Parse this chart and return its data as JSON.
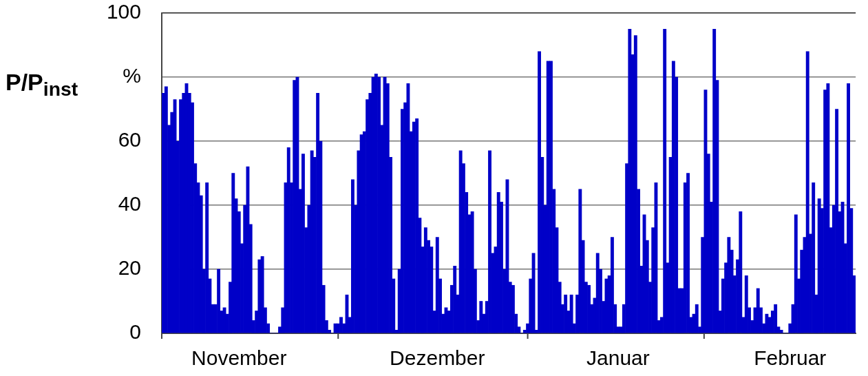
{
  "chart_data": {
    "type": "bar",
    "ylabel": "P/P$_{inst}$",
    "color": "#0000c8",
    "categories": [
      null,
      null,
      null,
      null,
      null,
      null,
      null,
      null,
      null,
      null,
      null,
      null,
      null,
      null,
      null,
      null,
      null,
      null,
      null,
      null,
      null,
      null,
      null,
      null,
      null,
      null,
      "November",
      null,
      null,
      null,
      null,
      null,
      null,
      null,
      null,
      null,
      null,
      null,
      null,
      null,
      null,
      null,
      null,
      null,
      null,
      null,
      null,
      null,
      null,
      null,
      null,
      null,
      null,
      null,
      null,
      null,
      null,
      null,
      null,
      null,
      null,
      null,
      null,
      null,
      null,
      null,
      null,
      null,
      null,
      null,
      null,
      null,
      null,
      null,
      null,
      null,
      null,
      null,
      null,
      null,
      null,
      null,
      null,
      null,
      null,
      null,
      null,
      null,
      null,
      null,
      null,
      null,
      null,
      null,
      "Dezember",
      null,
      null,
      null,
      null,
      null,
      null,
      null,
      null,
      null,
      null,
      null,
      null,
      null,
      null,
      null,
      null,
      null,
      null,
      null,
      null,
      null,
      null,
      null,
      null,
      null,
      null,
      null,
      null,
      null,
      null,
      null,
      null,
      null,
      null,
      null,
      null,
      null,
      null,
      null,
      null,
      null,
      null,
      null,
      null,
      null,
      null,
      null,
      null,
      null,
      null,
      null,
      null,
      null,
      null,
      null,
      null,
      null,
      null,
      null,
      null,
      null,
      "Januar",
      null,
      null,
      null,
      null,
      null,
      null,
      null,
      null,
      null,
      null,
      null,
      null,
      null,
      null,
      null,
      null,
      null,
      null,
      null,
      null,
      null,
      null,
      null,
      null,
      null,
      null,
      null,
      null,
      null,
      null,
      null,
      null,
      null,
      null,
      null,
      null,
      null,
      null,
      null,
      null,
      null,
      null,
      null,
      null,
      null,
      null,
      null,
      null,
      null,
      null,
      null,
      null,
      null,
      null,
      null,
      null,
      null,
      null,
      "Februar",
      null,
      null,
      null,
      null,
      null,
      null,
      null,
      null,
      null,
      null,
      null,
      null,
      null,
      null,
      null,
      null,
      null,
      null,
      null,
      null,
      null,
      null
    ],
    "values": [
      75,
      77,
      65,
      69,
      73,
      60,
      73,
      75,
      78,
      75,
      72,
      53,
      47,
      43,
      20,
      47,
      17,
      9,
      9,
      20,
      7,
      8,
      6,
      16,
      50,
      42,
      38,
      28,
      40,
      52,
      34,
      4,
      7,
      23,
      24,
      8,
      3,
      0,
      0,
      0,
      2,
      8,
      47,
      58,
      47,
      79,
      80,
      45,
      56,
      33,
      40,
      57,
      55,
      75,
      60,
      15,
      4,
      1,
      0,
      3,
      3,
      5,
      3,
      12,
      5,
      48,
      40,
      57,
      62,
      63,
      73,
      75,
      80,
      81,
      80,
      65,
      80,
      78,
      55,
      17,
      1,
      20,
      70,
      72,
      78,
      63,
      66,
      67,
      36,
      27,
      33,
      29,
      27,
      7,
      30,
      17,
      6,
      8,
      7,
      15,
      21,
      12,
      57,
      53,
      44,
      37,
      38,
      20,
      4,
      10,
      6,
      10,
      57,
      25,
      27,
      44,
      41,
      20,
      48,
      16,
      15,
      6,
      2,
      0,
      1,
      3,
      17,
      25,
      1,
      88,
      55,
      40,
      85,
      85,
      45,
      33,
      16,
      9,
      12,
      7,
      12,
      3,
      12,
      45,
      29,
      16,
      15,
      9,
      11,
      25,
      20,
      10,
      17,
      18,
      30,
      9,
      2,
      2,
      9,
      53,
      95,
      87,
      93,
      45,
      21,
      37,
      29,
      16,
      33,
      47,
      4,
      5,
      95,
      22,
      55,
      85,
      80,
      14,
      14,
      47,
      50,
      5,
      6,
      9,
      2,
      30,
      76,
      56,
      41,
      95,
      79,
      7,
      17,
      22,
      30,
      26,
      18,
      23,
      38,
      5,
      18,
      8,
      4,
      8,
      14,
      8,
      3,
      6,
      5,
      7,
      9,
      2,
      1,
      0,
      0,
      3,
      9,
      37,
      17,
      26,
      30,
      88,
      31,
      47,
      12,
      42,
      39,
      76,
      78,
      33,
      40,
      70,
      38,
      41,
      28,
      78,
      39,
      18
    ],
    "ylim": [
      0,
      100
    ],
    "yticks": [
      0,
      20,
      40,
      60,
      {
        "value": 80,
        "label": "%"
      },
      100
    ],
    "grid": "y"
  }
}
